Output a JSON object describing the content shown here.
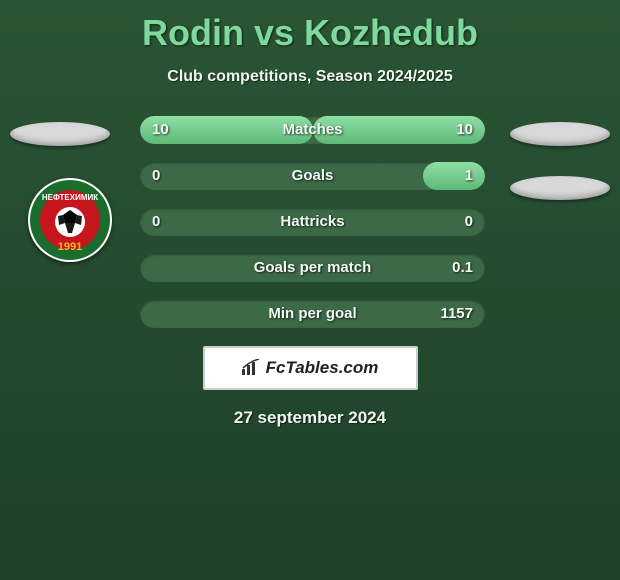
{
  "title": "Rodin vs Kozhedub",
  "subtitle": "Club competitions, Season 2024/2025",
  "date": "27 september 2024",
  "branding": "FcTables.com",
  "colors": {
    "title": "#7fd89c",
    "text": "#eef5ef",
    "bg_top": "#2a5535",
    "bg_bottom": "#1e4028",
    "bar_track": "#3c6a47",
    "bar_fill_top": "#8ee0a5",
    "bar_fill_bottom": "#5fb877",
    "ellipse": "#d8d8d8",
    "white": "#ffffff"
  },
  "club_badge": {
    "text": "НЕФТЕХИМИК",
    "year": "1991",
    "green": "#1b6d2e",
    "red": "#c4161c",
    "ball_bw": [
      "#000000",
      "#ffffff"
    ]
  },
  "bars": [
    {
      "label": "Matches",
      "left": "10",
      "right": "10",
      "left_pct": 50,
      "right_pct": 50
    },
    {
      "label": "Goals",
      "left": "0",
      "right": "1",
      "left_pct": 0,
      "right_pct": 18
    },
    {
      "label": "Hattricks",
      "left": "0",
      "right": "0",
      "left_pct": 0,
      "right_pct": 0
    },
    {
      "label": "Goals per match",
      "left": "",
      "right": "0.1",
      "left_pct": 0,
      "right_pct": 0
    },
    {
      "label": "Min per goal",
      "left": "",
      "right": "1157",
      "left_pct": 0,
      "right_pct": 0
    }
  ]
}
